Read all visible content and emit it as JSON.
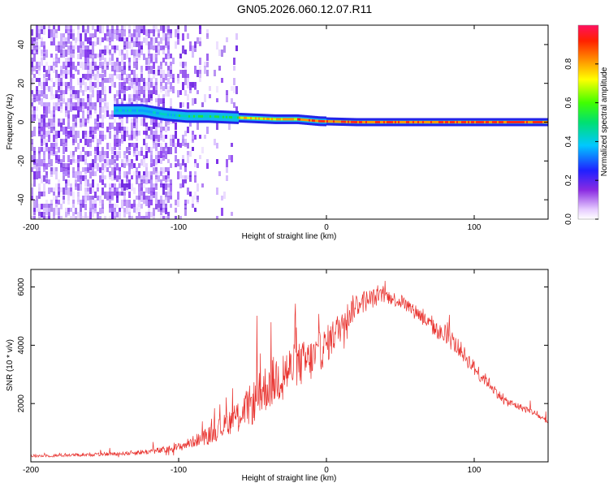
{
  "title": "GN05.2026.060.12.07.R11",
  "colors": {
    "snr_line": "#e8302c",
    "axes": "#000000"
  },
  "chart_data": [
    {
      "type": "heatmap",
      "name": "spectrogram",
      "xlabel": "Height of straight line (km)",
      "ylabel": "Frequency (Hz)",
      "xlim": [
        -200,
        150
      ],
      "ylim": [
        -50,
        50
      ],
      "xticks": [
        -200,
        -100,
        0,
        100
      ],
      "xtick_labels": [
        "-200",
        "-100",
        "0",
        "100"
      ],
      "yticks": [
        -40,
        -20,
        0,
        20,
        40
      ],
      "ytick_labels": [
        "-40",
        "-20",
        "0",
        "20",
        "40"
      ],
      "ridge": {
        "description": "dominant frequency vs height",
        "x": [
          -140,
          -125,
          -110,
          -95,
          -80,
          -65,
          -50,
          -35,
          -20,
          -5,
          20,
          60,
          100,
          150
        ],
        "y": [
          6,
          6,
          4,
          3,
          3,
          2.5,
          2,
          1.5,
          1.5,
          0.5,
          0,
          0,
          0,
          0
        ]
      },
      "noise_floor_until_x": -85,
      "colorbar": {
        "label": "Normalized spectral amplitude",
        "range": [
          0,
          1
        ],
        "ticks": [
          0.0,
          0.2,
          0.4,
          0.6,
          0.8
        ],
        "tick_labels": [
          "0.0",
          "0.2",
          "0.4",
          "0.6",
          "0.8"
        ]
      }
    },
    {
      "type": "line",
      "name": "snr",
      "xlabel": "Height of straight line (km)",
      "ylabel": "SNR (10 * v/v)",
      "xlim": [
        -200,
        150
      ],
      "ylim": [
        0,
        6600
      ],
      "xticks": [
        -200,
        -100,
        0,
        100
      ],
      "xtick_labels": [
        "-200",
        "-100",
        "0",
        "100"
      ],
      "yticks": [
        2000,
        4000,
        6000
      ],
      "ytick_labels": [
        "2000",
        "4000",
        "6000"
      ],
      "series": [
        {
          "name": "SNR",
          "x": [
            -200,
            -180,
            -160,
            -140,
            -120,
            -110,
            -100,
            -90,
            -80,
            -70,
            -60,
            -50,
            -40,
            -30,
            -20,
            -10,
            0,
            10,
            20,
            30,
            40,
            50,
            60,
            70,
            80,
            90,
            100,
            110,
            120,
            130,
            140,
            150
          ],
          "values": [
            200,
            220,
            250,
            280,
            350,
            400,
            500,
            700,
            900,
            1200,
            1600,
            2000,
            2600,
            3000,
            3300,
            3500,
            4000,
            4700,
            5400,
            5600,
            5700,
            5500,
            5200,
            4700,
            4300,
            3900,
            3200,
            2700,
            2100,
            1900,
            1700,
            1350
          ],
          "noise_amplitude": [
            100,
            110,
            120,
            130,
            200,
            250,
            300,
            400,
            600,
            800,
            1000,
            1500,
            1700,
            1800,
            1600,
            1500,
            1300,
            1100,
            900,
            700,
            500,
            500,
            500,
            550,
            600,
            600,
            550,
            400,
            300,
            250,
            220,
            200
          ]
        }
      ]
    }
  ]
}
